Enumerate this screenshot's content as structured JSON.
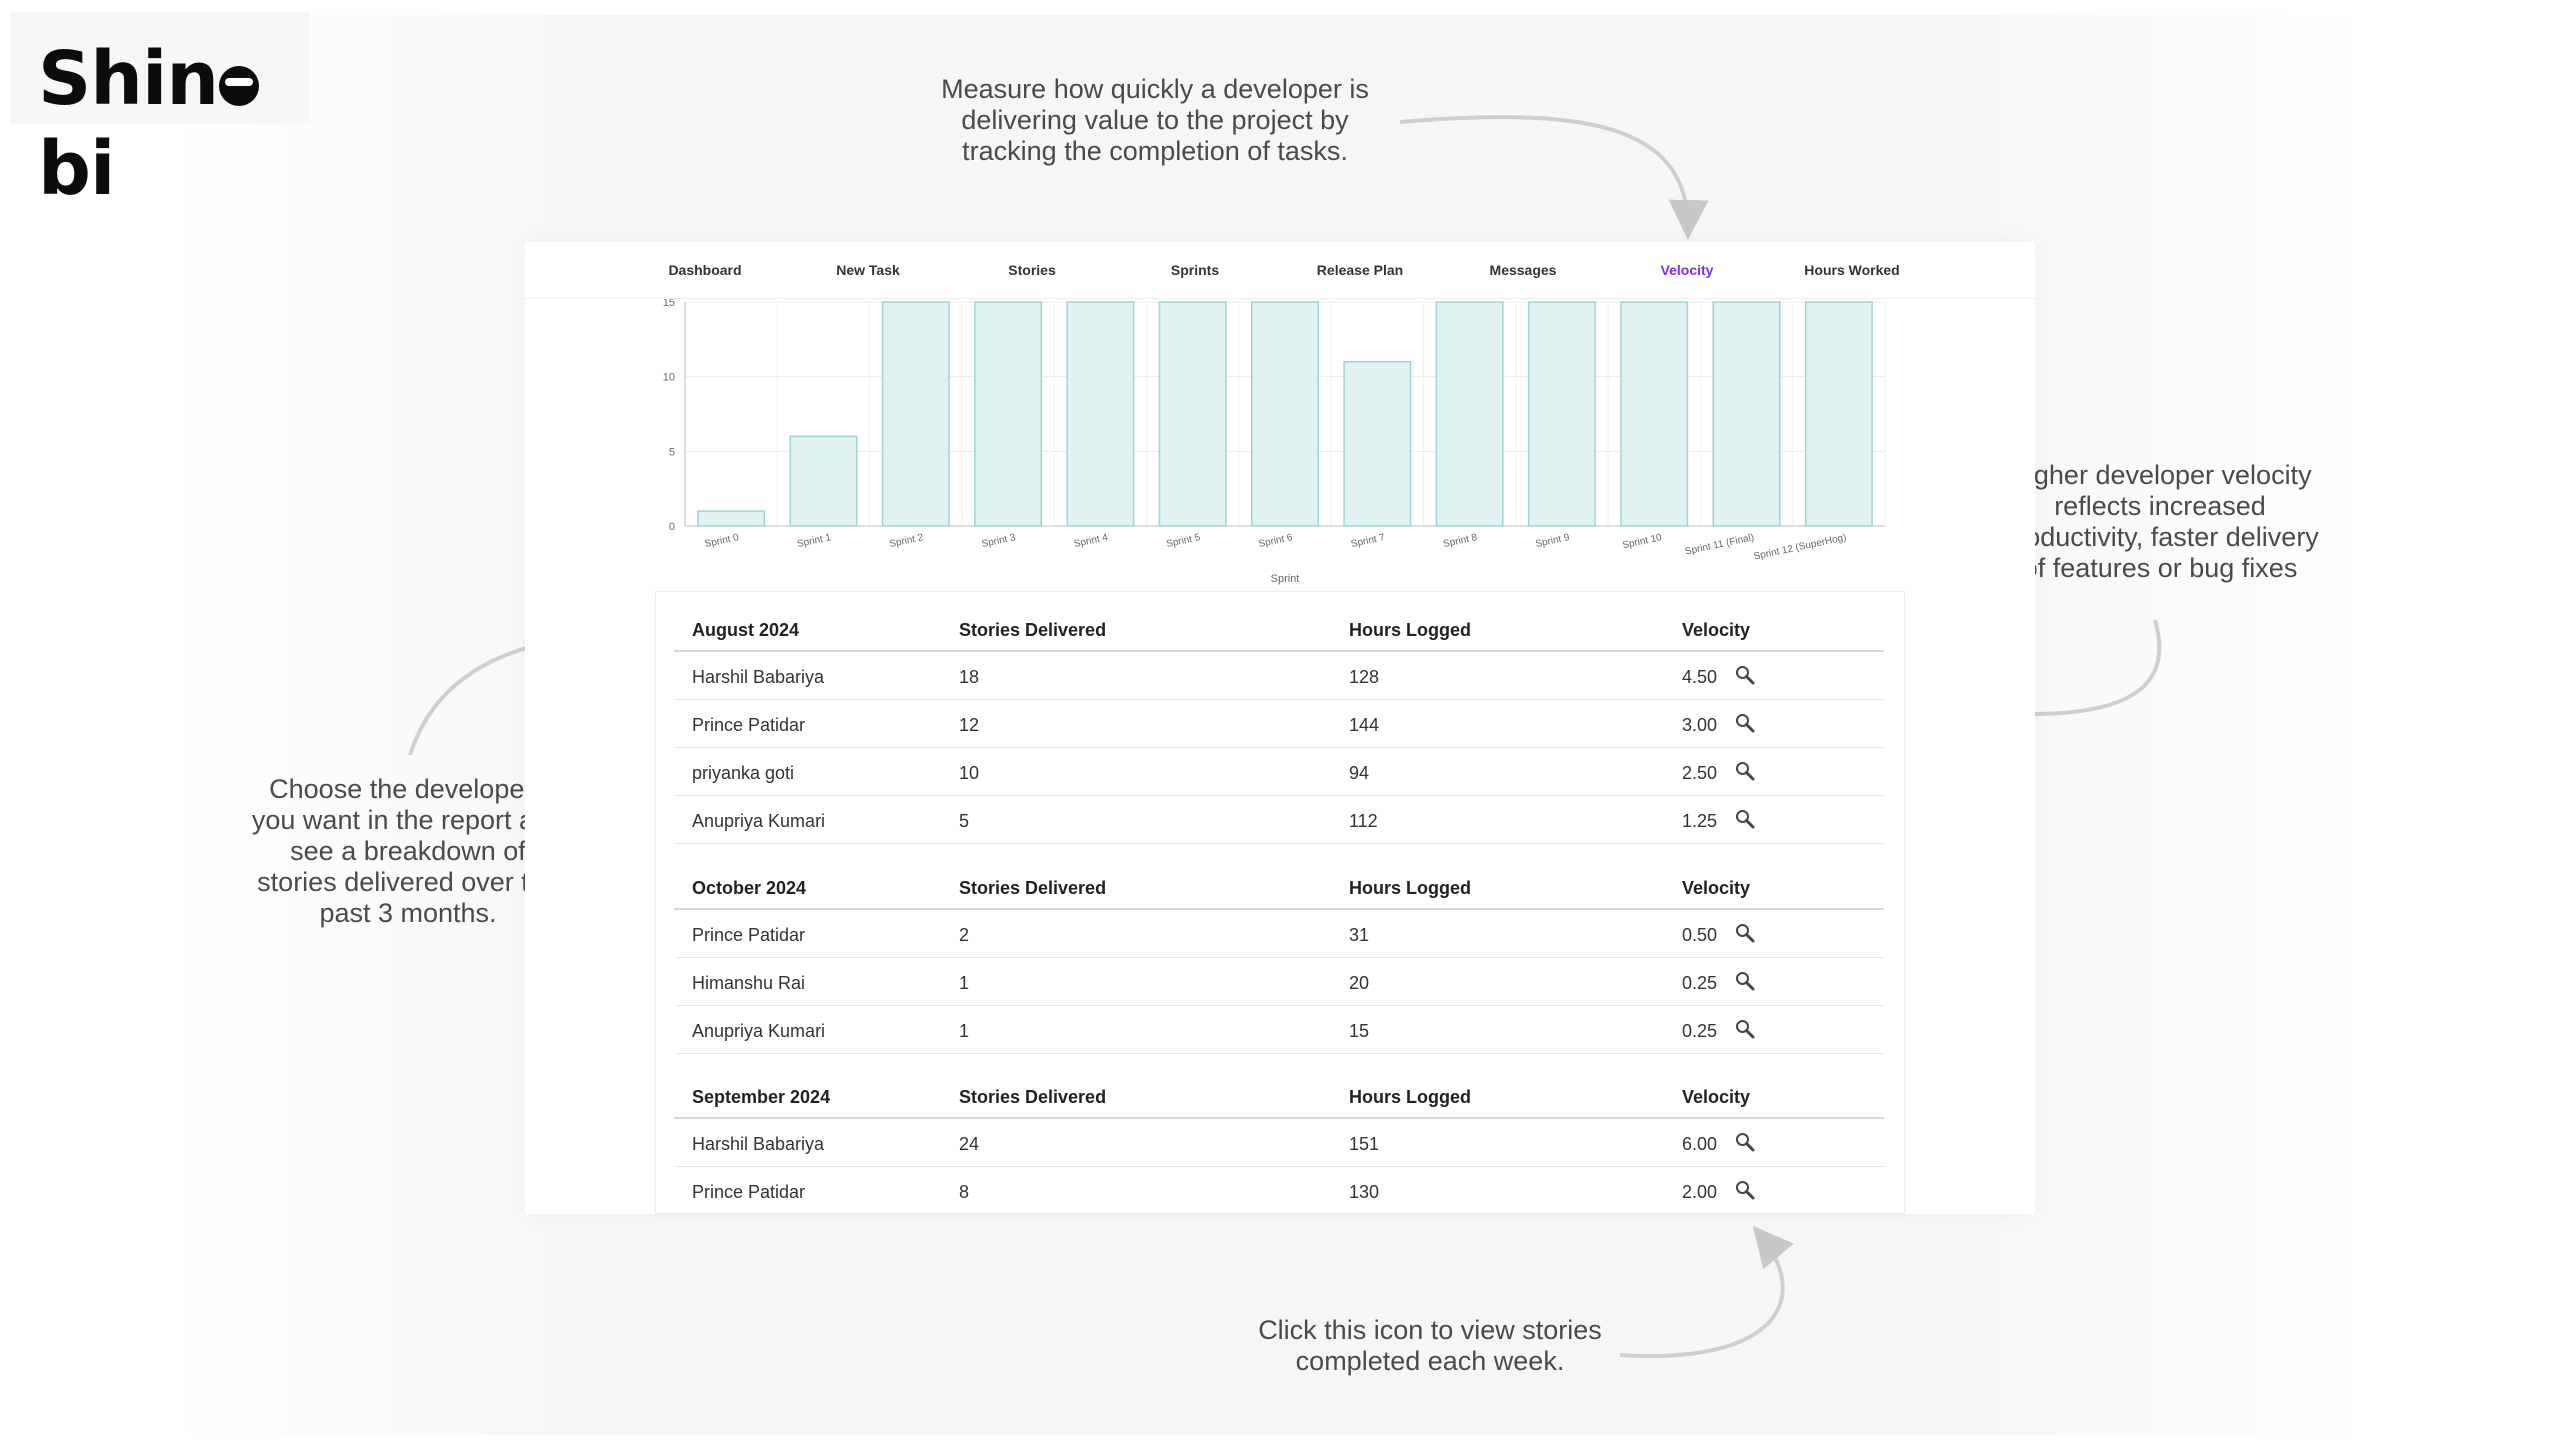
{
  "logo": {
    "text_before": "Shin",
    "text_after": "bi"
  },
  "annotations": {
    "velocity_tab": [
      "Measure how quickly a developer is",
      "delivering value to the project by",
      "tracking the completion of tasks."
    ],
    "velocity_meaning": [
      "Higher developer velocity",
      "reflects increased",
      "productivity, faster delivery",
      "of features or bug fixes"
    ],
    "developers": [
      "Choose the developers",
      "you want in the report and",
      "see a breakdown of",
      "stories delivered over the",
      "past 3 months."
    ],
    "icon_hint": [
      "Click this icon to view stories",
      "completed each week."
    ]
  },
  "nav": {
    "items": [
      "Dashboard",
      "New Task",
      "Stories",
      "Sprints",
      "Release Plan",
      "Messages",
      "Velocity",
      "Hours Worked"
    ],
    "active": "Velocity",
    "accent_color": "#7b2ff2"
  },
  "chart_data": {
    "type": "bar",
    "categories": [
      "Sprint 0",
      "Sprint 1",
      "Sprint 2",
      "Sprint 3",
      "Sprint 4",
      "Sprint 5",
      "Sprint 6",
      "Sprint 7",
      "Sprint 8",
      "Sprint 9",
      "Sprint 10",
      "Sprint 11 (Final)",
      "Sprint 12 (SuperHog)"
    ],
    "values": [
      1,
      6,
      15,
      15,
      15,
      15,
      15,
      11,
      15,
      15,
      15,
      15,
      15
    ],
    "xlabel": "Sprint",
    "y_tick_labels": [
      "0",
      "5",
      "10",
      "15"
    ],
    "ylim": [
      0,
      15
    ],
    "grid": true,
    "bar_fill": "#e0f2f2",
    "bar_stroke": "#9fd3d3"
  },
  "table": {
    "columns": [
      "Stories Delivered",
      "Hours Logged",
      "Velocity"
    ],
    "icon": "magnifier-icon",
    "groups": [
      {
        "month": "August 2024",
        "rows": [
          {
            "name": "Harshil Babariya",
            "stories": "18",
            "hours": "128",
            "velocity": "4.50"
          },
          {
            "name": "Prince Patidar",
            "stories": "12",
            "hours": "144",
            "velocity": "3.00"
          },
          {
            "name": "priyanka goti",
            "stories": "10",
            "hours": "94",
            "velocity": "2.50"
          },
          {
            "name": "Anupriya Kumari",
            "stories": "5",
            "hours": "112",
            "velocity": "1.25"
          }
        ]
      },
      {
        "month": "October 2024",
        "rows": [
          {
            "name": "Prince Patidar",
            "stories": "2",
            "hours": "31",
            "velocity": "0.50"
          },
          {
            "name": "Himanshu Rai",
            "stories": "1",
            "hours": "20",
            "velocity": "0.25"
          },
          {
            "name": "Anupriya Kumari",
            "stories": "1",
            "hours": "15",
            "velocity": "0.25"
          }
        ]
      },
      {
        "month": "September 2024",
        "rows": [
          {
            "name": "Harshil Babariya",
            "stories": "24",
            "hours": "151",
            "velocity": "6.00"
          },
          {
            "name": "Prince Patidar",
            "stories": "8",
            "hours": "130",
            "velocity": "2.00"
          }
        ]
      }
    ]
  }
}
